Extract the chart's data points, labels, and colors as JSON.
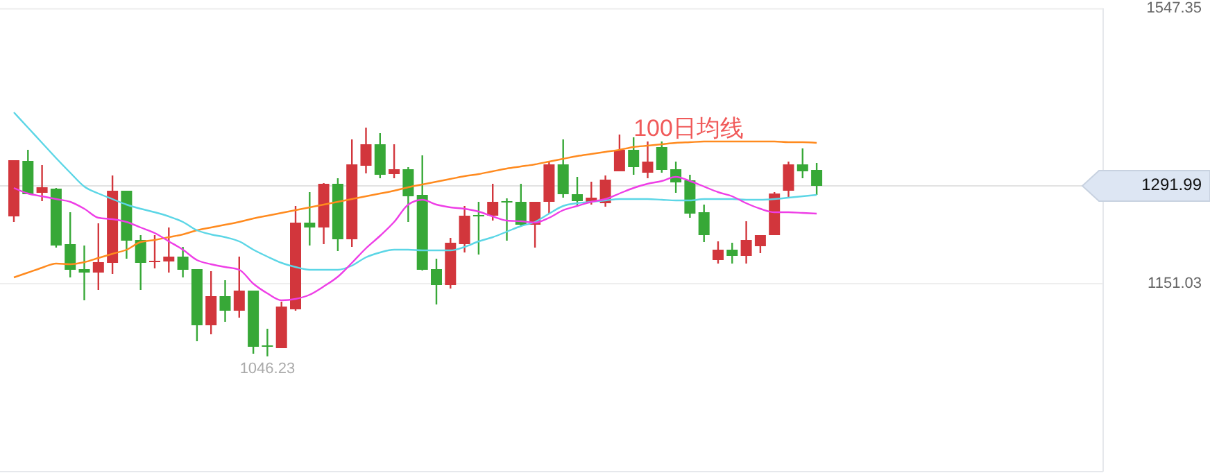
{
  "chart_data": {
    "type": "candlestick",
    "categories": [
      null,
      null,
      null,
      null,
      null,
      null,
      null,
      null,
      null,
      null,
      null,
      null,
      null,
      null,
      null,
      null,
      null,
      null,
      null,
      null,
      null,
      null,
      null,
      null,
      null,
      null,
      null,
      null,
      null,
      null,
      null,
      null,
      null,
      null,
      null,
      null,
      null,
      null,
      null,
      null,
      null,
      null,
      null,
      null,
      null,
      null,
      null,
      null,
      null,
      null,
      null,
      null,
      null,
      null,
      null,
      null,
      null,
      null
    ],
    "ohlc": [
      [
        1248,
        1329,
        1240,
        1329
      ],
      [
        1328,
        1344,
        1280,
        1280
      ],
      [
        1282,
        1322,
        1270,
        1290
      ],
      [
        1288,
        1289,
        1203,
        1206
      ],
      [
        1208,
        1254,
        1160,
        1171
      ],
      [
        1172,
        1206,
        1127,
        1167
      ],
      [
        1167,
        1238,
        1142,
        1182
      ],
      [
        1181,
        1307,
        1165,
        1285
      ],
      [
        1285,
        1285,
        1187,
        1213
      ],
      [
        1214,
        1221,
        1142,
        1181
      ],
      [
        1182,
        1221,
        1173,
        1184
      ],
      [
        1183,
        1232,
        1167,
        1190
      ],
      [
        1190,
        1204,
        1160,
        1171
      ],
      [
        1172,
        1172,
        1068,
        1091
      ],
      [
        1091,
        1169,
        1078,
        1133
      ],
      [
        1133,
        1156,
        1096,
        1112
      ],
      [
        1112,
        1190,
        1102,
        1141
      ],
      [
        1141,
        1141,
        1050,
        1060
      ],
      [
        1062,
        1086,
        1046.23,
        1060
      ],
      [
        1058,
        1125,
        1058,
        1118
      ],
      [
        1114,
        1263,
        1112,
        1239
      ],
      [
        1239,
        1283,
        1206,
        1232
      ],
      [
        1232,
        1296,
        1208,
        1295
      ],
      [
        1295,
        1303,
        1198,
        1215
      ],
      [
        1215,
        1359,
        1204,
        1323
      ],
      [
        1321,
        1376,
        1310,
        1352
      ],
      [
        1352,
        1368,
        1303,
        1308
      ],
      [
        1309,
        1352,
        1303,
        1316
      ],
      [
        1316,
        1319,
        1240,
        1277
      ],
      [
        1279,
        1336,
        1170,
        1171
      ],
      [
        1172,
        1187,
        1121,
        1149
      ],
      [
        1149,
        1217,
        1144,
        1210
      ],
      [
        1208,
        1263,
        1196,
        1249
      ],
      [
        1250,
        1269,
        1193,
        1249
      ],
      [
        1249,
        1295,
        1242,
        1269
      ],
      [
        1270,
        1274,
        1213,
        1269
      ],
      [
        1269,
        1295,
        1234,
        1236
      ],
      [
        1236,
        1269,
        1203,
        1269
      ],
      [
        1269,
        1328,
        1252,
        1323
      ],
      [
        1323,
        1359,
        1275,
        1280
      ],
      [
        1280,
        1305,
        1262,
        1270
      ],
      [
        1269,
        1298,
        1265,
        1275
      ],
      [
        1267,
        1307,
        1262,
        1301
      ],
      [
        1313,
        1366,
        1313,
        1344
      ],
      [
        1344,
        1362,
        1308,
        1319
      ],
      [
        1311,
        1356,
        1303,
        1327
      ],
      [
        1348,
        1356,
        1311,
        1315
      ],
      [
        1316,
        1327,
        1282,
        1297
      ],
      [
        1300,
        1308,
        1246,
        1252
      ],
      [
        1254,
        1265,
        1211,
        1221
      ],
      [
        1185,
        1212,
        1180,
        1200
      ],
      [
        1200,
        1210,
        1180,
        1191
      ],
      [
        1191,
        1241,
        1180,
        1214
      ],
      [
        1205,
        1221,
        1195,
        1221
      ],
      [
        1221,
        1283,
        1221,
        1281
      ],
      [
        1285,
        1327,
        1275,
        1323
      ],
      [
        1323,
        1346,
        1303,
        1313
      ],
      [
        1315,
        1325,
        1279,
        1291.99
      ]
    ],
    "series": [
      {
        "type": "line",
        "name": "100日均线",
        "color": "#ff8a1e",
        "values": [
          1160,
          1167,
          1174,
          1180,
          1179,
          1182,
          1188,
          1194,
          1200,
          1211,
          1214,
          1218,
          1222,
          1228,
          1232,
          1236,
          1240,
          1245,
          1249,
          1253,
          1257,
          1261,
          1265,
          1269,
          1273,
          1277,
          1281,
          1285,
          1290,
          1294,
          1298,
          1302,
          1306,
          1309,
          1313,
          1317,
          1320,
          1323,
          1327,
          1331,
          1335,
          1338,
          1341,
          1344,
          1348,
          1350,
          1352,
          1354,
          1355,
          1356,
          1356,
          1356,
          1356,
          1356,
          1356,
          1355,
          1355,
          1354
        ]
      },
      {
        "type": "line",
        "color": "#5cd6e6",
        "values": [
          1398,
          1376,
          1354,
          1332,
          1311,
          1291,
          1281,
          1273,
          1265,
          1259,
          1254,
          1248,
          1240,
          1228,
          1222,
          1218,
          1212,
          1200,
          1190,
          1181,
          1175,
          1171,
          1171,
          1171,
          1177,
          1189,
          1196,
          1200,
          1200,
          1199,
          1199,
          1199,
          1204,
          1212,
          1218,
          1226,
          1234,
          1240,
          1252,
          1263,
          1267,
          1269,
          1271,
          1273,
          1273,
          1273,
          1272,
          1271,
          1271,
          1273,
          1273,
          1273,
          1272,
          1272,
          1273,
          1275,
          1277,
          1279
        ]
      },
      {
        "type": "line",
        "color": "#ee3ee6",
        "values": [
          1289,
          1281,
          1277,
          1273,
          1269,
          1259,
          1246,
          1244,
          1240,
          1232,
          1224,
          1212,
          1200,
          1185,
          1179,
          1175,
          1171,
          1151,
          1137,
          1127,
          1129,
          1135,
          1147,
          1161,
          1181,
          1202,
          1220,
          1240,
          1265,
          1272,
          1265,
          1261,
          1259,
          1255,
          1248,
          1242,
          1241,
          1239,
          1246,
          1257,
          1263,
          1269,
          1273,
          1281,
          1289,
          1295,
          1299,
          1305,
          1299,
          1291,
          1283,
          1277,
          1267,
          1259,
          1254,
          1254,
          1253,
          1252
        ]
      }
    ],
    "ylim": [
      880,
      1548
    ],
    "yticks": [
      1547.35,
      1151.03
    ],
    "grid": "y",
    "ref_lines": [
      {
        "axis": "y",
        "value": 1291.99,
        "label": "1291.99",
        "color": "#e2e2e2"
      }
    ],
    "annotations": [
      {
        "text": "1046.23",
        "y": 1046.23
      }
    ]
  }
}
